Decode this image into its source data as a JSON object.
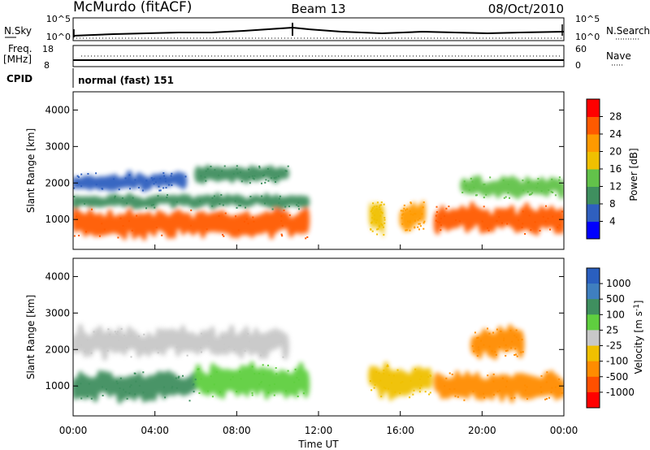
{
  "header": {
    "station": "McMurdo (fitACF)",
    "beam": "Beam 13",
    "date": "08/Oct/2010"
  },
  "top_panels": {
    "nsky_label": "N.Sky",
    "nsearch_label": "N.Search",
    "nsky_ticks": [
      "10^5",
      "10^0"
    ],
    "nsearch_ticks": [
      "10^5",
      "10^0"
    ],
    "freq_label": "Freq.",
    "freq_unit": "[MHz]",
    "freq_ticks": [
      "18",
      "8"
    ],
    "nave_label": "Nave",
    "nave_ticks": [
      "60",
      "0"
    ],
    "cpid_label": "CPID",
    "cpid_value": "normal (fast) 151"
  },
  "colors": {
    "power_scale": [
      "#0000ff",
      "#2f5fbf",
      "#3f8f5f",
      "#62c24a",
      "#f0c000",
      "#ff9a00",
      "#ff5a00",
      "#ff0000"
    ],
    "velocity_scale": [
      "#2a5fbf",
      "#3f7fbf",
      "#3f8f5f",
      "#5fcf3f",
      "#c8c8c8",
      "#f0c000",
      "#ff8c00",
      "#ff5000",
      "#ff0000"
    ]
  },
  "chart_data": [
    {
      "type": "heatmap",
      "title": "Power",
      "ylabel": "Slant Range [km]",
      "xlabel": "Time UT",
      "ylim": [
        180,
        4500
      ],
      "xlim": [
        "00:00",
        "24:00"
      ],
      "y_ticks": [
        "1000",
        "2000",
        "3000",
        "4000"
      ],
      "x_ticks": [
        "00:00",
        "04:00",
        "08:00",
        "12:00",
        "16:00",
        "20:00",
        "00:00"
      ],
      "colorbar_label": "Power [dB]",
      "colorbar_ticks": [
        "4",
        "8",
        "12",
        "16",
        "20",
        "24",
        "28"
      ],
      "colorbar_range": [
        0,
        30
      ],
      "echo_regions": [
        {
          "t_start": 0.0,
          "t_end": 11.5,
          "r_start": 500,
          "r_end": 1300,
          "power": 26
        },
        {
          "t_start": 0.0,
          "t_end": 11.5,
          "r_start": 1300,
          "r_end": 1700,
          "power": 10
        },
        {
          "t_start": 0.0,
          "t_end": 5.5,
          "r_start": 1800,
          "r_end": 2300,
          "power": 6
        },
        {
          "t_start": 6.0,
          "t_end": 10.5,
          "r_start": 2000,
          "r_end": 2500,
          "power": 8
        },
        {
          "t_start": 14.5,
          "t_end": 15.2,
          "r_start": 600,
          "r_end": 1500,
          "power": 18
        },
        {
          "t_start": 16.0,
          "t_end": 17.2,
          "r_start": 700,
          "r_end": 1500,
          "power": 22
        },
        {
          "t_start": 17.7,
          "t_end": 24.0,
          "r_start": 600,
          "r_end": 1400,
          "power": 24
        },
        {
          "t_start": 19.0,
          "t_end": 24.0,
          "r_start": 1600,
          "r_end": 2200,
          "power": 12
        }
      ]
    },
    {
      "type": "heatmap",
      "title": "Velocity",
      "ylabel": "Slant Range [km]",
      "xlabel": "Time UT",
      "ylim": [
        180,
        4500
      ],
      "xlim": [
        "00:00",
        "24:00"
      ],
      "y_ticks": [
        "1000",
        "2000",
        "3000",
        "4000"
      ],
      "x_ticks": [
        "00:00",
        "04:00",
        "08:00",
        "12:00",
        "16:00",
        "20:00",
        "00:00"
      ],
      "colorbar_label": "Velocity [m s^-1]",
      "colorbar_ticks": [
        "1000",
        "500",
        "100",
        "25",
        "-25",
        "-100",
        "-500",
        "-1000"
      ],
      "echo_regions": [
        {
          "t_start": 0.0,
          "t_end": 6.0,
          "r_start": 600,
          "r_end": 1400,
          "velocity": 300
        },
        {
          "t_start": 6.0,
          "t_end": 11.5,
          "r_start": 700,
          "r_end": 1600,
          "velocity": 50
        },
        {
          "t_start": 0.0,
          "t_end": 10.5,
          "r_start": 1800,
          "r_end": 2600,
          "velocity": 0
        },
        {
          "t_start": 14.5,
          "t_end": 17.5,
          "r_start": 700,
          "r_end": 1600,
          "velocity": -100
        },
        {
          "t_start": 17.7,
          "t_end": 24.0,
          "r_start": 600,
          "r_end": 1400,
          "velocity": -300
        },
        {
          "t_start": 19.5,
          "t_end": 22.0,
          "r_start": 1800,
          "r_end": 2600,
          "velocity": -400
        }
      ]
    }
  ]
}
